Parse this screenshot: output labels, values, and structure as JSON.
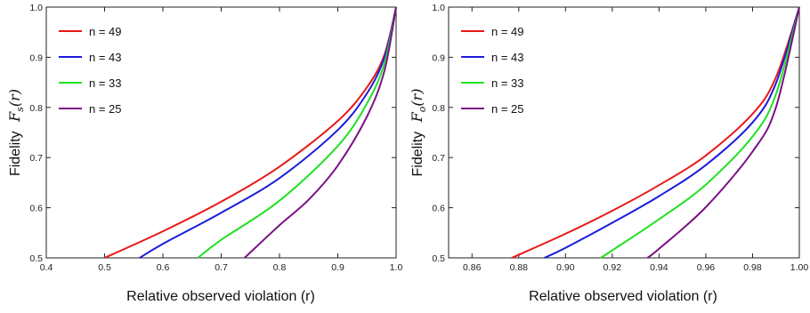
{
  "chart_data": [
    {
      "type": "line",
      "xlabel": "Relative observed violation (r)",
      "ylabel_prefix": "Fidelity",
      "ylabel_symbol": "F",
      "ylabel_subscript": "s",
      "ylabel_arg": "(r)",
      "xlim": [
        0.4,
        1.0
      ],
      "ylim": [
        0.5,
        1.0
      ],
      "xticks": [
        "0.4",
        "0.5",
        "0.6",
        "0.7",
        "0.8",
        "0.9",
        "1.0"
      ],
      "yticks": [
        "0.5",
        "0.6",
        "0.7",
        "0.8",
        "0.9",
        "1.0"
      ],
      "legend_position": "top-left",
      "series": [
        {
          "name": "n = 49",
          "color": "#e8191a",
          "x": [
            0.5,
            0.6,
            0.7,
            0.8,
            0.9,
            0.95,
            0.98,
            1.0
          ],
          "y": [
            0.5,
            0.553,
            0.612,
            0.682,
            0.773,
            0.84,
            0.905,
            1.0
          ]
        },
        {
          "name": "n = 43",
          "color": "#1c1cdc",
          "x": [
            0.56,
            0.6,
            0.7,
            0.8,
            0.9,
            0.95,
            0.98,
            1.0
          ],
          "y": [
            0.5,
            0.528,
            0.59,
            0.659,
            0.755,
            0.828,
            0.9,
            1.0
          ]
        },
        {
          "name": "n = 33",
          "color": "#22e022",
          "x": [
            0.66,
            0.7,
            0.8,
            0.9,
            0.95,
            0.98,
            1.0
          ],
          "y": [
            0.5,
            0.536,
            0.614,
            0.723,
            0.808,
            0.888,
            1.0
          ]
        },
        {
          "name": "n = 25",
          "color": "#7a1285",
          "x": [
            0.74,
            0.8,
            0.85,
            0.9,
            0.95,
            0.98,
            1.0
          ],
          "y": [
            0.5,
            0.565,
            0.616,
            0.684,
            0.782,
            0.873,
            1.0
          ]
        }
      ]
    },
    {
      "type": "line",
      "xlabel": "Relative observed violation (r)",
      "ylabel_prefix": "Fidelity",
      "ylabel_symbol": "F",
      "ylabel_subscript": "o",
      "ylabel_arg": "(r)",
      "xlim": [
        0.85,
        1.0
      ],
      "ylim": [
        0.5,
        1.0
      ],
      "xticks": [
        "0.86",
        "0.88",
        "0.90",
        "0.92",
        "0.94",
        "0.96",
        "0.98",
        "1.00"
      ],
      "yticks": [
        "0.5",
        "0.6",
        "0.7",
        "0.8",
        "0.9",
        "1.0"
      ],
      "legend_position": "top-left",
      "series": [
        {
          "name": "n = 49",
          "color": "#e8191a",
          "x": [
            0.877,
            0.9,
            0.92,
            0.94,
            0.96,
            0.98,
            0.99,
            1.0
          ],
          "y": [
            0.5,
            0.548,
            0.594,
            0.645,
            0.704,
            0.787,
            0.86,
            1.0
          ]
        },
        {
          "name": "n = 43",
          "color": "#1c1cdc",
          "x": [
            0.891,
            0.9,
            0.92,
            0.94,
            0.96,
            0.98,
            0.99,
            1.0
          ],
          "y": [
            0.5,
            0.52,
            0.57,
            0.623,
            0.685,
            0.77,
            0.848,
            1.0
          ]
        },
        {
          "name": "n = 33",
          "color": "#22e022",
          "x": [
            0.915,
            0.92,
            0.94,
            0.96,
            0.98,
            0.99,
            1.0
          ],
          "y": [
            0.5,
            0.515,
            0.577,
            0.646,
            0.742,
            0.826,
            1.0
          ]
        },
        {
          "name": "n = 25",
          "color": "#7a1285",
          "x": [
            0.935,
            0.94,
            0.96,
            0.98,
            0.99,
            1.0
          ],
          "y": [
            0.5,
            0.518,
            0.601,
            0.712,
            0.8,
            1.0
          ]
        }
      ]
    }
  ]
}
